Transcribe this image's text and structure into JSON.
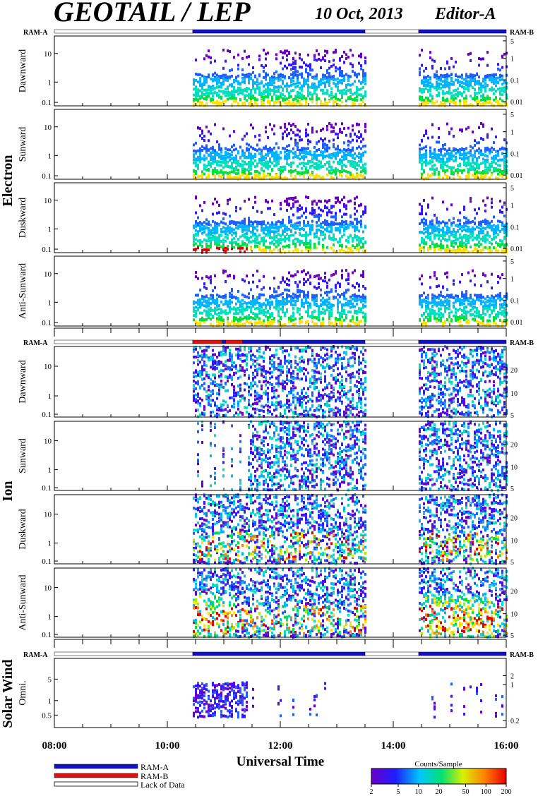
{
  "header": {
    "title": "GEOTAIL / LEP",
    "date": "10 Oct, 2013",
    "editor": "Editor-A"
  },
  "ram_labels": {
    "left": "RAM-A",
    "right": "RAM-B"
  },
  "groups": [
    {
      "name": "Electron"
    },
    {
      "name": "Ion"
    },
    {
      "name": "Solar Wind"
    }
  ],
  "panels": [
    {
      "group": "Electron",
      "name": "Dawnward",
      "yticks_left": [
        "10",
        "1",
        "0.1"
      ],
      "yticks_right": [
        "5",
        "1",
        "0.1",
        "0.01"
      ]
    },
    {
      "group": "Electron",
      "name": "Sunward",
      "yticks_left": [
        "10",
        "1",
        "0.1"
      ],
      "yticks_right": [
        "5",
        "1",
        "0.1",
        "0.01"
      ]
    },
    {
      "group": "Electron",
      "name": "Duskward",
      "yticks_left": [
        "10",
        "1",
        "0.1"
      ],
      "yticks_right": [
        "5",
        "1",
        "0.1",
        "0.01"
      ]
    },
    {
      "group": "Electron",
      "name": "Anti-Sunward",
      "yticks_left": [
        "10",
        "1",
        "0.1"
      ],
      "yticks_right": [
        "5",
        "1",
        "0.1",
        "0.01"
      ]
    },
    {
      "group": "Ion",
      "name": "Dawnward",
      "yticks_left": [
        "10",
        "1",
        "0.1"
      ],
      "yticks_right": [
        "20",
        "10",
        "5"
      ]
    },
    {
      "group": "Ion",
      "name": "Sunward",
      "yticks_left": [
        "10",
        "1",
        "0.1"
      ],
      "yticks_right": [
        "20",
        "10",
        "5"
      ]
    },
    {
      "group": "Ion",
      "name": "Duskward",
      "yticks_left": [
        "10",
        "1",
        "0.1"
      ],
      "yticks_right": [
        "20",
        "10",
        "5"
      ]
    },
    {
      "group": "Ion",
      "name": "Anti-Sunward",
      "yticks_left": [
        "10",
        "1",
        "0.1"
      ],
      "yticks_right": [
        "20",
        "10",
        "5"
      ]
    },
    {
      "group": "Solar Wind",
      "name": "Omni.",
      "yticks_left": [
        "5",
        "1",
        "0.5"
      ],
      "yticks_right": [
        "2",
        "1",
        "0.2"
      ]
    }
  ],
  "ram_status": {
    "electron": [
      {
        "from": "08:00",
        "to": "10:27",
        "state": "none"
      },
      {
        "from": "10:27",
        "to": "13:30",
        "state": "RAM-A"
      },
      {
        "from": "13:30",
        "to": "14:27",
        "state": "none"
      },
      {
        "from": "14:27",
        "to": "16:00",
        "state": "RAM-A"
      }
    ],
    "ion": [
      {
        "from": "08:00",
        "to": "10:27",
        "state": "none"
      },
      {
        "from": "10:27",
        "to": "10:58",
        "state": "RAM-B"
      },
      {
        "from": "10:58",
        "to": "11:02",
        "state": "RAM-A"
      },
      {
        "from": "11:02",
        "to": "11:20",
        "state": "RAM-B"
      },
      {
        "from": "11:20",
        "to": "13:30",
        "state": "RAM-A"
      },
      {
        "from": "13:30",
        "to": "14:27",
        "state": "none"
      },
      {
        "from": "14:27",
        "to": "16:00",
        "state": "RAM-A"
      }
    ],
    "solar": [
      {
        "from": "08:00",
        "to": "10:27",
        "state": "none"
      },
      {
        "from": "10:27",
        "to": "13:30",
        "state": "RAM-A"
      },
      {
        "from": "13:30",
        "to": "14:27",
        "state": "none"
      },
      {
        "from": "14:27",
        "to": "16:00",
        "state": "RAM-A"
      }
    ]
  },
  "chart_data": {
    "type": "heatmap",
    "title": "GEOTAIL / LEP",
    "xlabel": "Universal Time",
    "x_ticks": [
      "08:00",
      "10:00",
      "12:00",
      "14:00",
      "16:00"
    ],
    "xlim": [
      "08:00",
      "16:00"
    ],
    "data_coverage": [
      {
        "from": "10:27",
        "to": "13:30"
      },
      {
        "from": "14:27",
        "to": "16:00"
      }
    ],
    "colorbar": {
      "label": "Counts/Sample",
      "ticks": [
        "2",
        "5",
        "10",
        "20",
        "50",
        "100",
        "200"
      ],
      "scale": "log",
      "range": [
        2,
        200
      ]
    }
  },
  "legend": {
    "items": [
      {
        "label": "RAM-A",
        "color": "#1010c8"
      },
      {
        "label": "RAM-B",
        "color": "#e01010"
      },
      {
        "label": "Lack of Data",
        "color": "#ffffff"
      }
    ]
  }
}
